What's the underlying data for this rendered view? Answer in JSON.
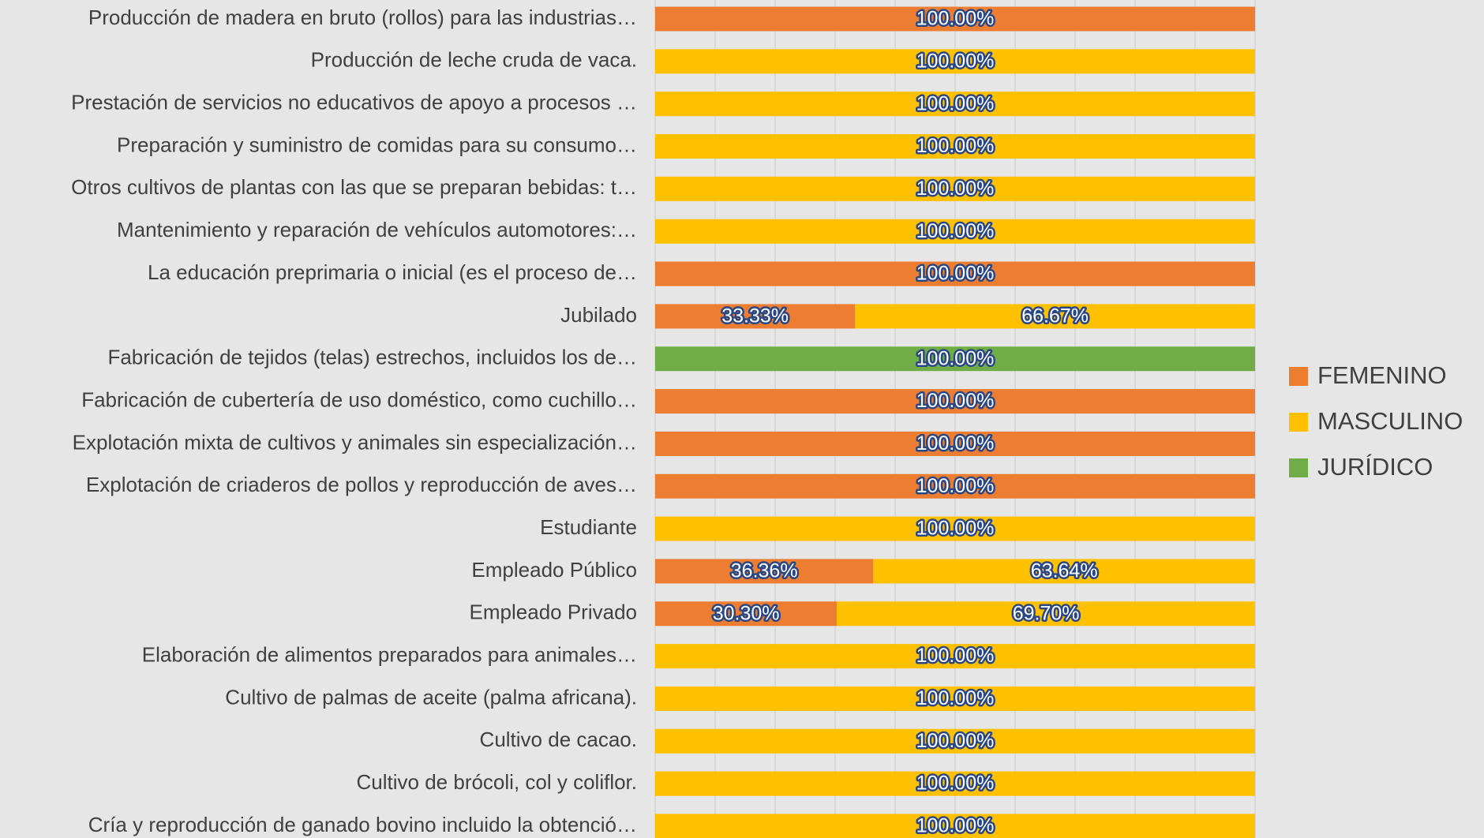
{
  "chart_data": {
    "type": "stacked-barh",
    "categories": [
      "Producción de madera en bruto (rollos) para las industrias…",
      "Producción de leche cruda de vaca.",
      "Prestación de servicios no educativos de apoyo a procesos …",
      "Preparación y suministro de comidas para su consumo…",
      "Otros cultivos de plantas con las que se preparan bebidas: t…",
      "Mantenimiento y reparación de vehículos automotores:…",
      "La educación preprimaria o inicial (es el proceso de…",
      "Jubilado",
      "Fabricación de tejidos (telas) estrechos, incluidos los de…",
      "Fabricación de cubertería de uso doméstico, como cuchillo…",
      "Explotación mixta de cultivos y animales sin especialización…",
      "Explotación de criaderos de pollos y reproducción de aves…",
      "Estudiante",
      "Empleado Público",
      "Empleado Privado",
      "Elaboración de alimentos preparados para animales…",
      "Cultivo de palmas de aceite (palma africana).",
      "Cultivo de cacao.",
      "Cultivo de brócoli, col y coliflor.",
      "Cría y reproducción de ganado bovino incluido la obtenció…"
    ],
    "series": [
      {
        "name": "FEMENINO",
        "color": "#ed7d31",
        "values": [
          100,
          null,
          null,
          null,
          null,
          null,
          100,
          33.33,
          null,
          100,
          100,
          100,
          null,
          36.36,
          30.3,
          null,
          null,
          null,
          null,
          null
        ],
        "value_labels": [
          "100.00%",
          null,
          null,
          null,
          null,
          null,
          "100.00%",
          "33.33%",
          null,
          "100.00%",
          "100.00%",
          "100.00%",
          null,
          "36.36%",
          "30.30%",
          null,
          null,
          null,
          null,
          null
        ]
      },
      {
        "name": "MASCULINO",
        "color": "#ffc000",
        "values": [
          null,
          100,
          100,
          100,
          100,
          100,
          null,
          66.67,
          null,
          null,
          null,
          null,
          100,
          63.64,
          69.7,
          100,
          100,
          100,
          100,
          100
        ],
        "value_labels": [
          null,
          "100.00%",
          "100.00%",
          "100.00%",
          "100.00%",
          "100.00%",
          null,
          "66.67%",
          null,
          null,
          null,
          null,
          "100.00%",
          "63.64%",
          "69.70%",
          "100.00%",
          "100.00%",
          "100.00%",
          "100.00%",
          "100.00%"
        ]
      },
      {
        "name": "JURÍDICO",
        "color": "#70ad47",
        "values": [
          null,
          null,
          null,
          null,
          null,
          null,
          null,
          null,
          100,
          null,
          null,
          null,
          null,
          null,
          null,
          null,
          null,
          null,
          null,
          null
        ],
        "value_labels": [
          null,
          null,
          null,
          null,
          null,
          null,
          null,
          null,
          "100.00%",
          null,
          null,
          null,
          null,
          null,
          null,
          null,
          null,
          null,
          null,
          null
        ]
      }
    ],
    "xlim": [
      0,
      100
    ],
    "xticks": [
      0,
      10,
      20,
      30,
      40,
      50,
      60,
      70,
      80,
      90,
      100
    ],
    "grid": true,
    "legend": "right"
  }
}
